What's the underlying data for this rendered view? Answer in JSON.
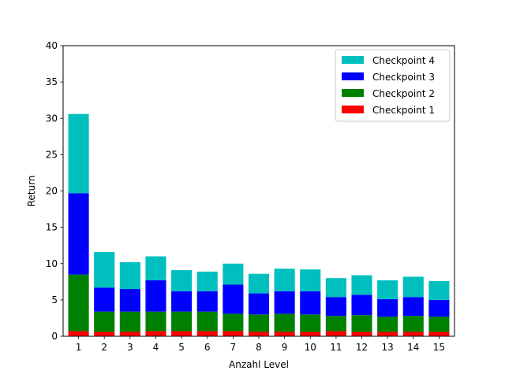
{
  "chart_data": {
    "type": "bar",
    "stacked": true,
    "title": "",
    "xlabel": "Anzahl Level",
    "ylabel": "Return",
    "ylim": [
      0,
      40
    ],
    "yticks": [
      0,
      5,
      10,
      15,
      20,
      25,
      30,
      35,
      40
    ],
    "categories": [
      "1",
      "2",
      "3",
      "4",
      "5",
      "6",
      "7",
      "8",
      "9",
      "10",
      "11",
      "12",
      "13",
      "14",
      "15"
    ],
    "legend_position": "top-right",
    "grid": false,
    "series": [
      {
        "name": "Checkpoint 1",
        "color": "#ff0000",
        "values": [
          0.7,
          0.6,
          0.6,
          0.7,
          0.7,
          0.7,
          0.7,
          0.6,
          0.6,
          0.6,
          0.7,
          0.6,
          0.6,
          0.6,
          0.6
        ]
      },
      {
        "name": "Checkpoint 2",
        "color": "#008000",
        "values": [
          7.8,
          2.8,
          2.8,
          2.7,
          2.7,
          2.7,
          2.4,
          2.4,
          2.5,
          2.4,
          2.1,
          2.3,
          2.1,
          2.2,
          2.1
        ]
      },
      {
        "name": "Checkpoint 3",
        "color": "#0000ff",
        "values": [
          11.2,
          3.3,
          3.1,
          4.3,
          2.8,
          2.8,
          4.0,
          2.9,
          3.1,
          3.2,
          2.6,
          2.8,
          2.4,
          2.6,
          2.3
        ]
      },
      {
        "name": "Checkpoint 4",
        "color": "#00bfbf",
        "values": [
          10.9,
          4.9,
          3.7,
          3.3,
          2.9,
          2.7,
          2.9,
          2.7,
          3.1,
          3.0,
          2.6,
          2.7,
          2.6,
          2.8,
          2.6
        ]
      }
    ],
    "legend_order": [
      "Checkpoint 4",
      "Checkpoint 3",
      "Checkpoint 2",
      "Checkpoint 1"
    ]
  }
}
